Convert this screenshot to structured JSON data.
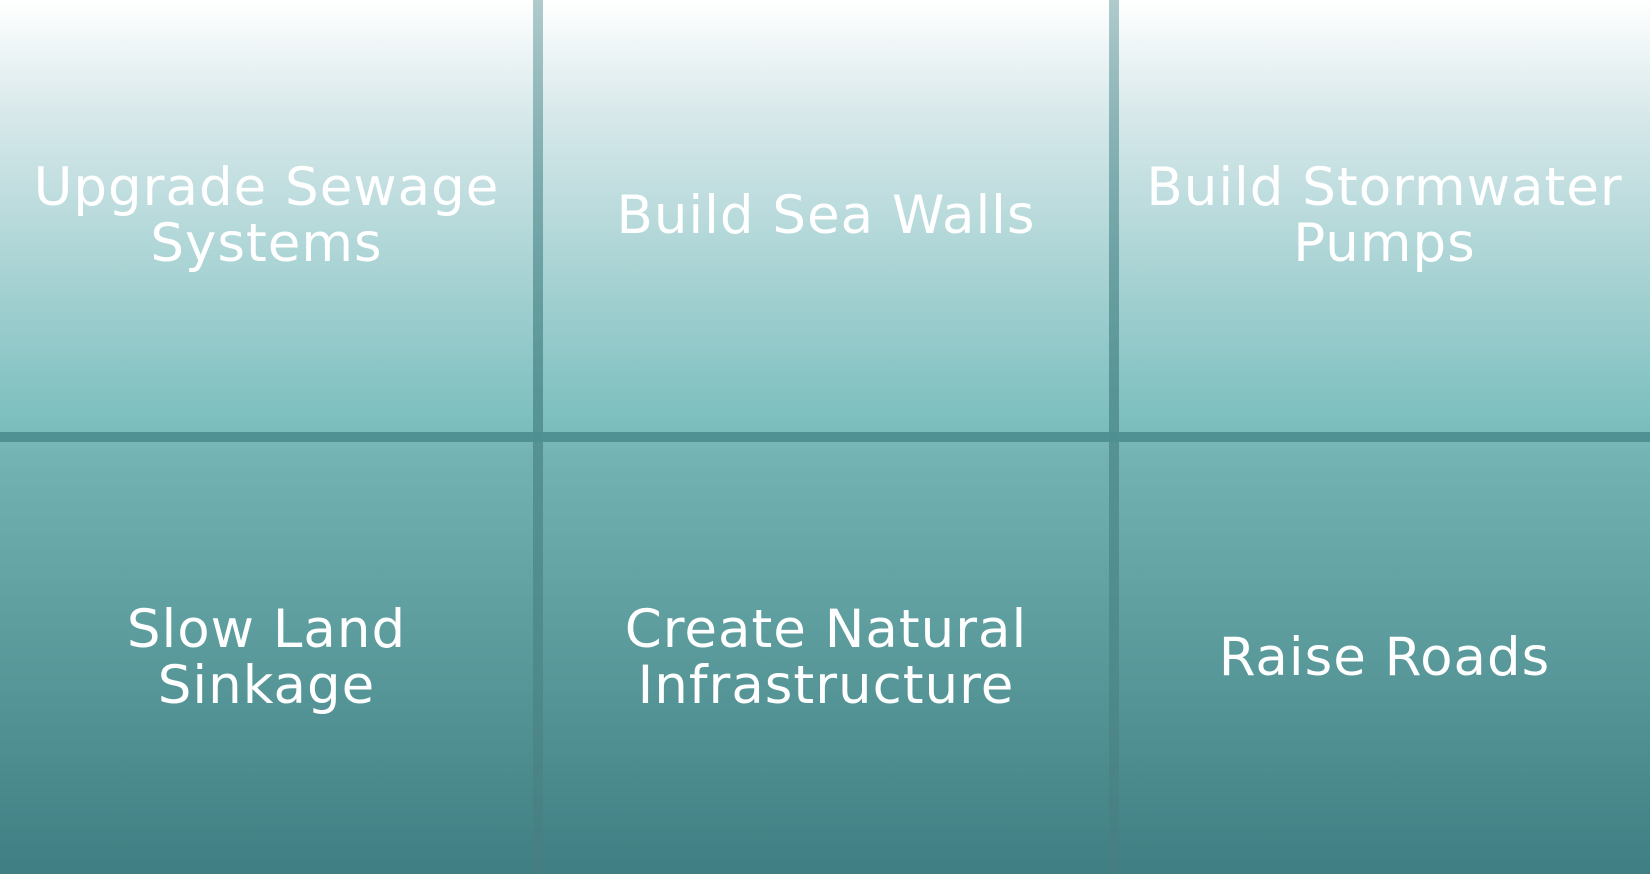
{
  "tiles": [
    {
      "label": "Upgrade Sewage\nSystems"
    },
    {
      "label": "Build Sea Walls"
    },
    {
      "label": "Build Stormwater\nPumps"
    },
    {
      "label": "Slow Land\nSinkage"
    },
    {
      "label": "Create Natural\nInfrastructure"
    },
    {
      "label": "Raise Roads"
    }
  ],
  "colors": {
    "top": "#ffffff",
    "middle": "#7dbfbf",
    "bottom": "#3f7f83",
    "text": "#ffffff"
  }
}
